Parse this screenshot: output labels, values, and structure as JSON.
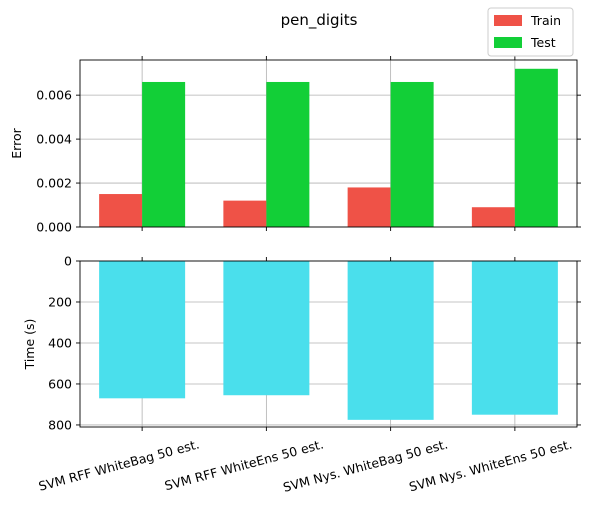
{
  "chart_data": {
    "title": "pen_digits",
    "categories": [
      "SVM RFF WhiteBag 50 est.",
      "SVM RFF WhiteEns 50 est.",
      "SVM Nys. WhiteBag 50 est.",
      "SVM Nys. WhiteEns 50 est."
    ],
    "panels": [
      {
        "type": "bar",
        "ylabel": "Error",
        "ylim": [
          0,
          0.0076
        ],
        "yticks": [
          "0.000",
          "0.002",
          "0.004",
          "0.006"
        ],
        "ytick_values": [
          0,
          0.002,
          0.004,
          0.006
        ],
        "grid": true,
        "series": [
          {
            "name": "Train",
            "color": "#ef5247",
            "values": [
              0.0015,
              0.0012,
              0.0018,
              0.0009
            ]
          },
          {
            "name": "Test",
            "color": "#12cf37",
            "values": [
              0.0066,
              0.0066,
              0.0066,
              0.0072
            ]
          }
        ]
      },
      {
        "type": "bar",
        "ylabel": "Time (s)",
        "ylim": [
          0,
          810
        ],
        "inverted": true,
        "yticks": [
          "0",
          "200",
          "400",
          "600",
          "800"
        ],
        "ytick_values": [
          0,
          200,
          400,
          600,
          800
        ],
        "grid": true,
        "series": [
          {
            "color": "#4adfec",
            "values": [
              670,
              655,
              775,
              750
            ]
          }
        ]
      }
    ],
    "legend": {
      "placement": "top-right",
      "entries": [
        "Train",
        "Test"
      ]
    }
  }
}
